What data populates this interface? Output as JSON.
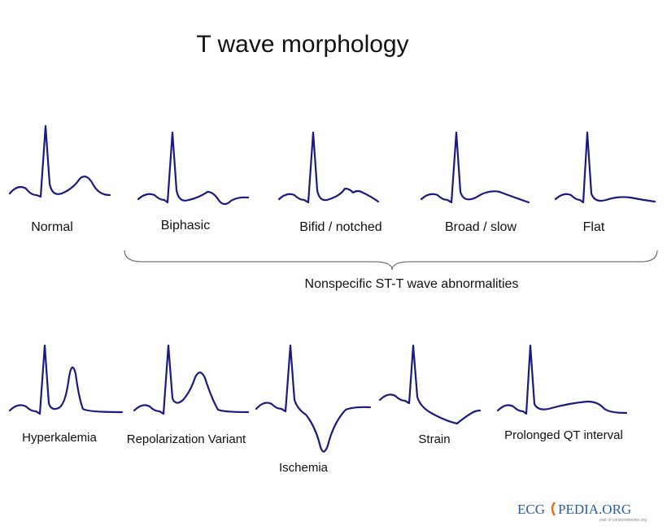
{
  "title": "T wave morphology",
  "top_row": [
    {
      "label": "Normal"
    },
    {
      "label": "Biphasic"
    },
    {
      "label": "Bifid / notched"
    },
    {
      "label": "Broad / slow"
    },
    {
      "label": "Flat"
    }
  ],
  "group_label": "Nonspecific ST-T wave abnormalities",
  "bottom_row": [
    {
      "label": "Hyperkalemia"
    },
    {
      "label": "Repolarization Variant"
    },
    {
      "label": "Ischemia"
    },
    {
      "label": "Strain"
    },
    {
      "label": "Prolonged QT interval"
    }
  ],
  "logo": {
    "left": "ECG",
    "right": "PEDIA.ORG",
    "tagline": "part of cardionetworks.org"
  }
}
